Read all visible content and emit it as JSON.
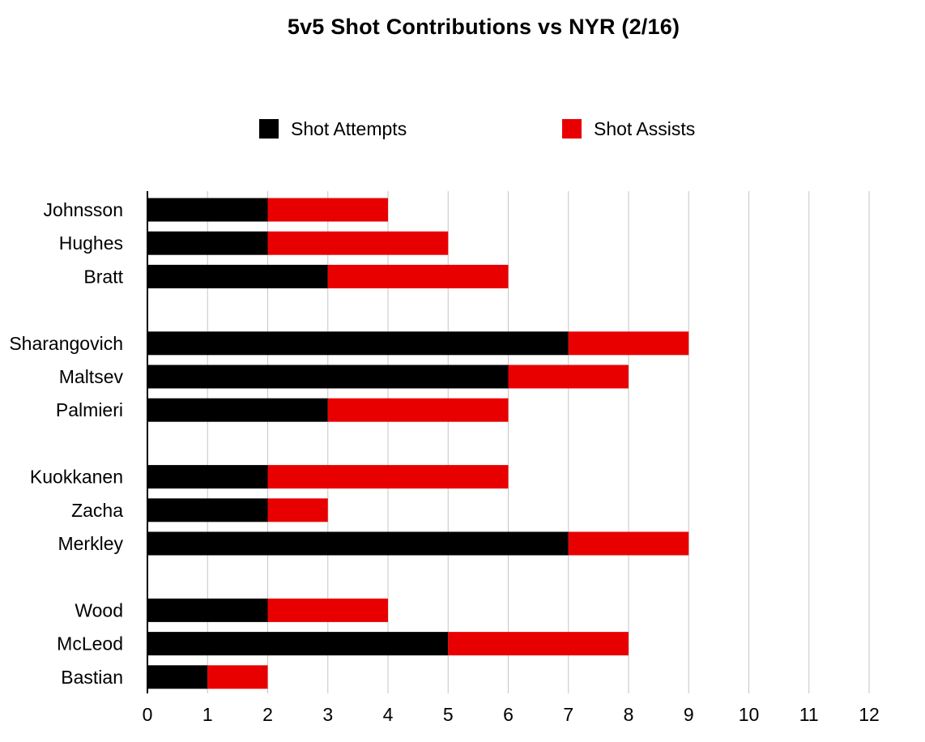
{
  "chart_data": {
    "type": "bar",
    "orientation": "horizontal",
    "stacked": true,
    "title": "5v5 Shot Contributions vs NYR (2/16)",
    "categories": [
      "Johnsson",
      "Hughes",
      "Bratt",
      "Sharangovich",
      "Maltsev",
      "Palmieri",
      "Kuokkanen",
      "Zacha",
      "Merkley",
      "Wood",
      "McLeod",
      "Bastian"
    ],
    "groups": [
      [
        "Johnsson",
        "Hughes",
        "Bratt"
      ],
      [
        "Sharangovich",
        "Maltsev",
        "Palmieri"
      ],
      [
        "Kuokkanen",
        "Zacha",
        "Merkley"
      ],
      [
        "Wood",
        "McLeod",
        "Bastian"
      ]
    ],
    "series": [
      {
        "name": "Shot Attempts",
        "color": "#000000",
        "values": [
          2,
          2,
          3,
          7,
          6,
          3,
          2,
          2,
          7,
          2,
          5,
          1
        ]
      },
      {
        "name": "Shot Assists",
        "color": "#e80000",
        "values": [
          2,
          3,
          3,
          2,
          2,
          3,
          4,
          1,
          2,
          2,
          3,
          1
        ]
      }
    ],
    "xlim": [
      0,
      12
    ],
    "xticks": [
      "0",
      "1",
      "2",
      "3",
      "4",
      "5",
      "6",
      "7",
      "8",
      "9",
      "10",
      "11",
      "12"
    ],
    "grid": "vertical",
    "legend_position": "top"
  }
}
